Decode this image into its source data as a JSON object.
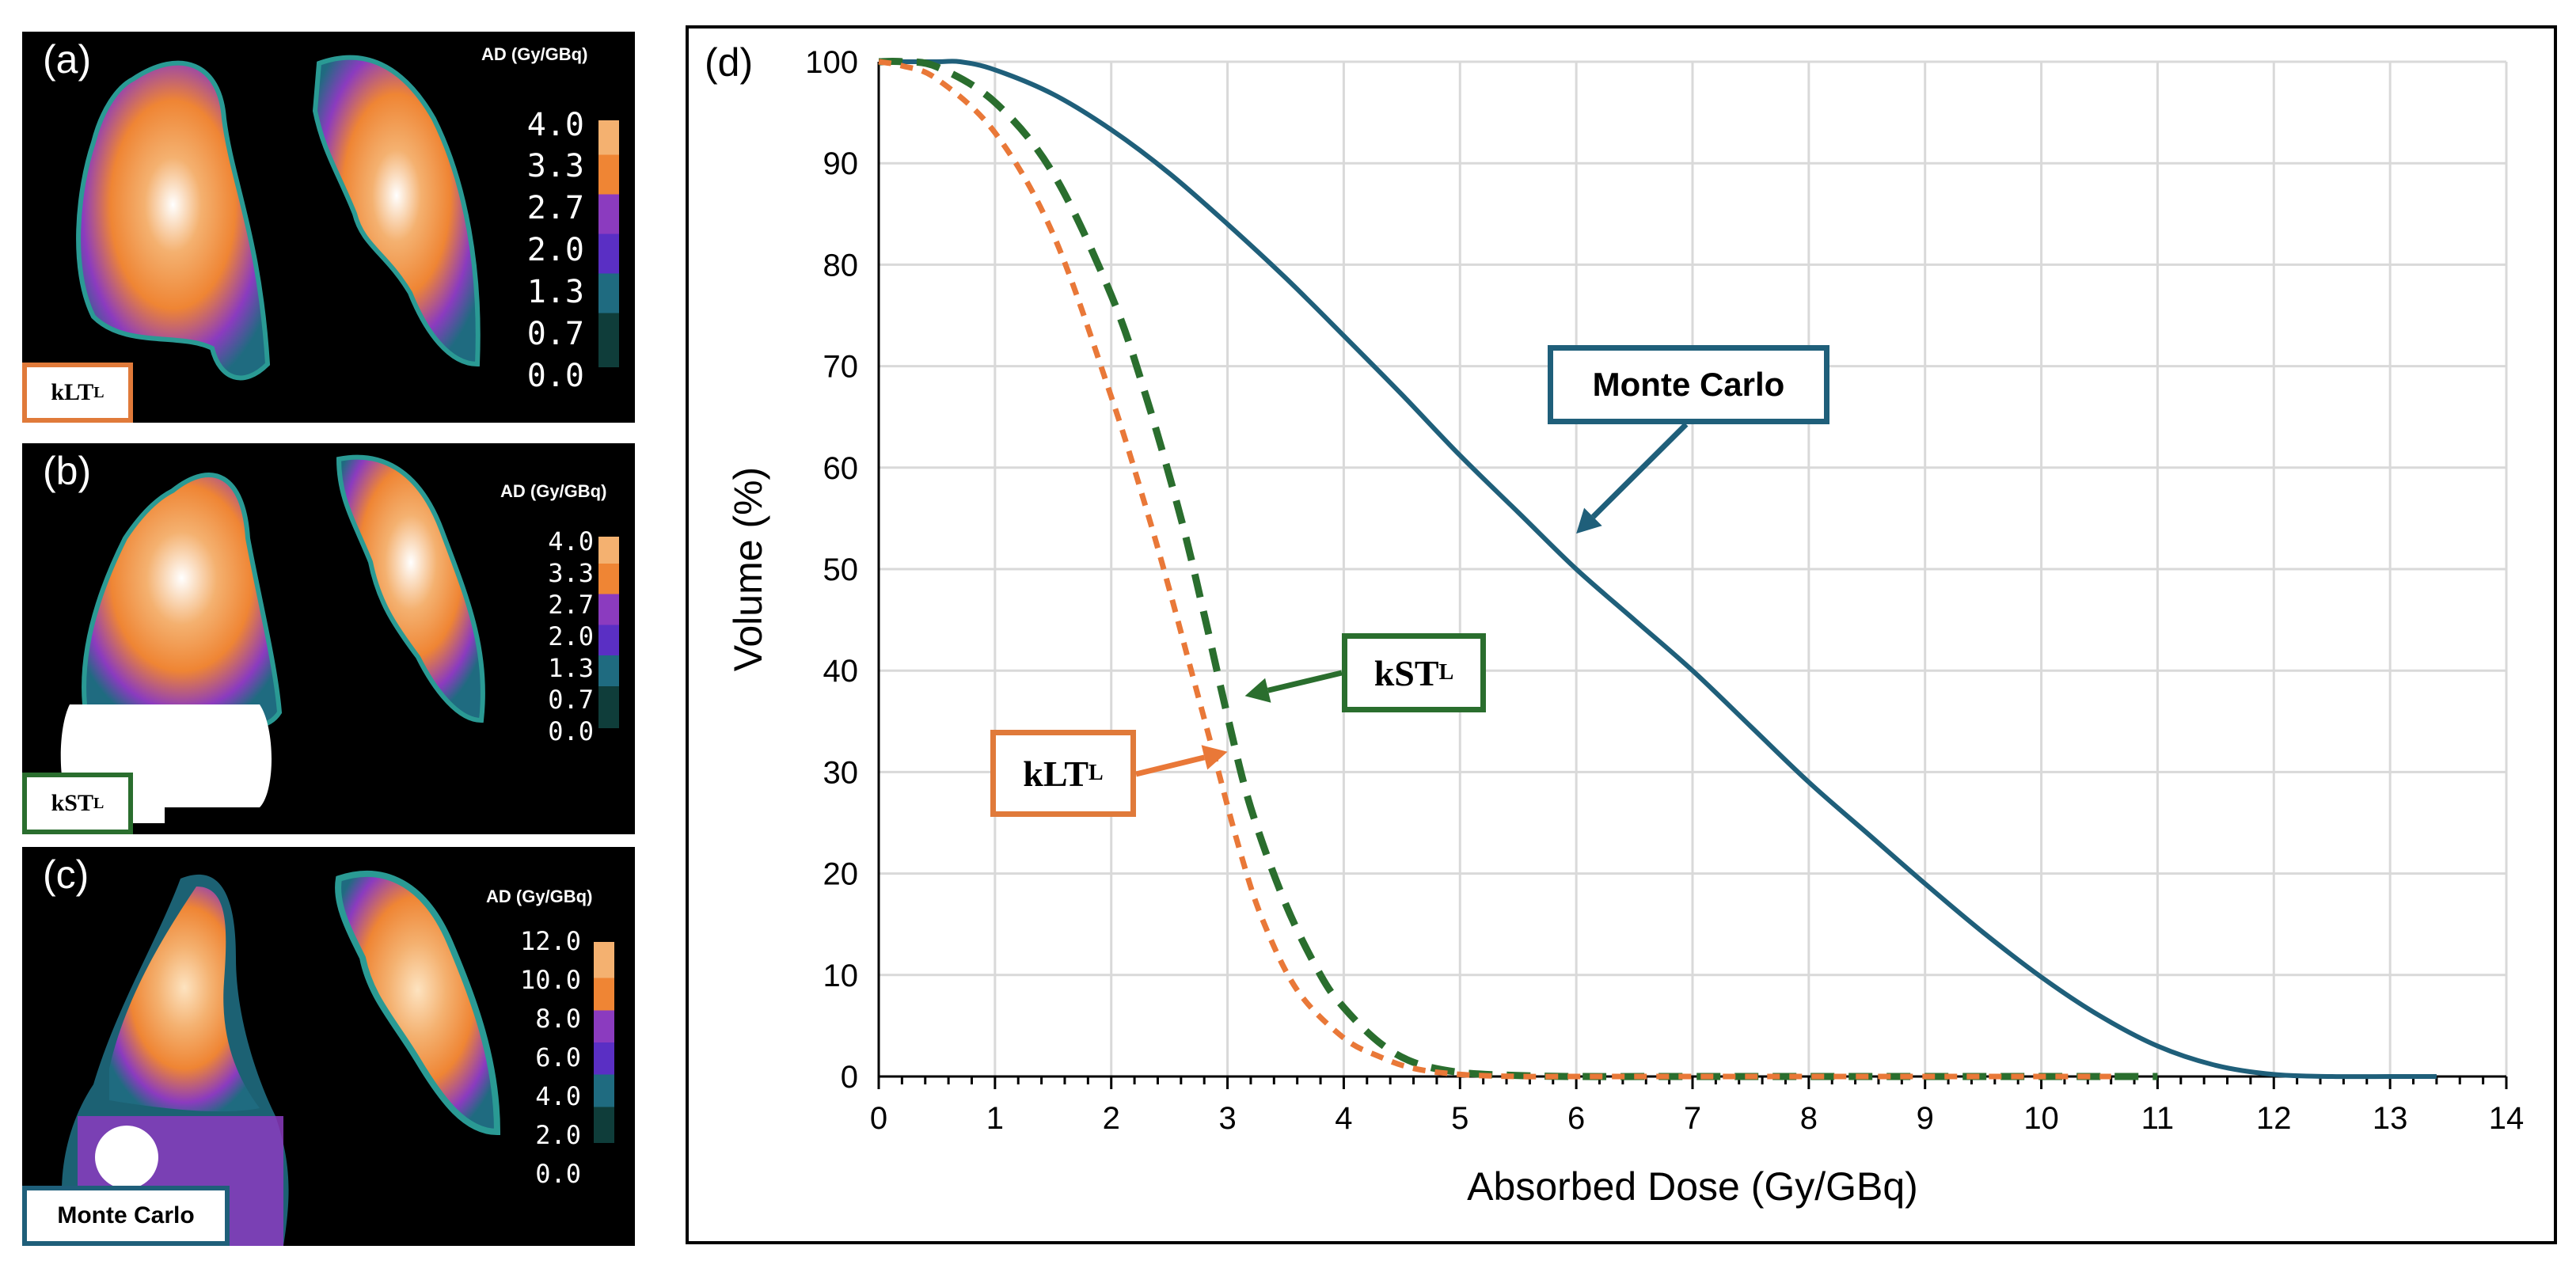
{
  "panels": [
    {
      "id": "a",
      "label": "(a)",
      "colorbar_title": "AD (Gy/GBq)",
      "ticks": [
        "4.0",
        "3.3",
        "2.7",
        "2.0",
        "1.3",
        "0.7",
        "0.0"
      ],
      "method_main": "kLT",
      "method_sub": "L",
      "method_color": "#e07a3a"
    },
    {
      "id": "b",
      "label": "(b)",
      "colorbar_title": "AD (Gy/GBq)",
      "ticks": [
        "4.0",
        "3.3",
        "2.7",
        "2.0",
        "1.3",
        "0.7",
        "0.0"
      ],
      "method_main": "kST",
      "method_sub": "L",
      "method_color": "#2a6e2e"
    },
    {
      "id": "c",
      "label": "(c)",
      "colorbar_title": "AD (Gy/GBq)",
      "ticks": [
        "12.0",
        "10.0",
        "8.0",
        "6.0",
        "4.0",
        "2.0",
        "0.0"
      ],
      "method_main": "Monte Carlo",
      "method_sub": "",
      "method_color": "#1f5f7a"
    }
  ],
  "colors": {
    "monte_carlo": "#1f5f7a",
    "kst": "#2a6e2e",
    "klt": "#e97838",
    "grid": "#d9d9d9",
    "colormap": [
      "#f4b170",
      "#ef8534",
      "#8b3bbf",
      "#5a2fc4",
      "#1f6b80",
      "#0f3d3a",
      "#000000"
    ]
  },
  "chart_data": {
    "type": "line",
    "panel_label": "(d)",
    "xlabel": "Absorbed Dose (Gy/GBq)",
    "ylabel": "Volume (%)",
    "xlim": [
      0,
      14
    ],
    "ylim": [
      0,
      100
    ],
    "xticks": [
      "0",
      "1",
      "2",
      "3",
      "4",
      "5",
      "6",
      "7",
      "8",
      "9",
      "10",
      "11",
      "12",
      "13",
      "14"
    ],
    "yticks": [
      "0",
      "10",
      "20",
      "30",
      "40",
      "50",
      "60",
      "70",
      "80",
      "90",
      "100"
    ],
    "grid": true,
    "series": [
      {
        "name": "Monte Carlo",
        "style": "solid",
        "color": "#1f5f7a",
        "x": [
          0,
          0.5,
          0.7,
          1,
          1.5,
          2,
          2.5,
          3,
          3.5,
          4,
          4.5,
          5,
          5.5,
          6,
          6.5,
          7,
          7.5,
          8,
          8.5,
          9,
          9.5,
          10,
          10.5,
          11,
          11.5,
          12,
          12.5,
          13,
          13.4
        ],
        "y": [
          100,
          100,
          100,
          99.2,
          96.8,
          93.3,
          89,
          84,
          78.7,
          73,
          67.2,
          61.2,
          55.6,
          50,
          45,
          40,
          34.5,
          29,
          24,
          19,
          14.2,
          9.8,
          6,
          3,
          1.1,
          0.2,
          0,
          0,
          0
        ]
      },
      {
        "name": "kSTL",
        "style": "dashed",
        "color": "#2a6e2e",
        "x": [
          0,
          0.2,
          0.5,
          1,
          1.5,
          2,
          2.3,
          2.6,
          2.8,
          3,
          3.2,
          3.5,
          3.8,
          4,
          4.3,
          4.6,
          5,
          5.5,
          6,
          7,
          8,
          9,
          10,
          11
        ],
        "y": [
          100,
          100,
          99.5,
          96,
          89,
          77,
          67,
          55,
          45.5,
          35.5,
          26.5,
          17,
          10,
          6.8,
          3.4,
          1.4,
          0.4,
          0.1,
          0,
          0,
          0,
          0,
          0,
          0
        ]
      },
      {
        "name": "kLTL",
        "style": "dashed",
        "color": "#e97838",
        "x": [
          0,
          0.2,
          0.5,
          1,
          1.5,
          2,
          2.3,
          2.5,
          2.7,
          2.9,
          3.1,
          3.3,
          3.6,
          4,
          4.3,
          4.6,
          5,
          5.5,
          6,
          7,
          8,
          9,
          10,
          10.6
        ],
        "y": [
          100,
          99.6,
          98.3,
          93,
          83,
          67,
          56,
          48,
          39.5,
          31,
          22.5,
          15.5,
          8.5,
          3.8,
          2,
          0.8,
          0.2,
          0,
          0,
          0,
          0,
          0,
          0,
          0
        ]
      }
    ],
    "annotations": [
      {
        "text": "Monte Carlo",
        "sub": "",
        "series": "Monte Carlo",
        "point": [
          6.0,
          53.5
        ]
      },
      {
        "text": "kST",
        "sub": "L",
        "series": "kSTL",
        "point": [
          3.15,
          37.5
        ]
      },
      {
        "text": "kLT",
        "sub": "L",
        "series": "kLTL",
        "point": [
          3.0,
          32
        ]
      }
    ]
  }
}
